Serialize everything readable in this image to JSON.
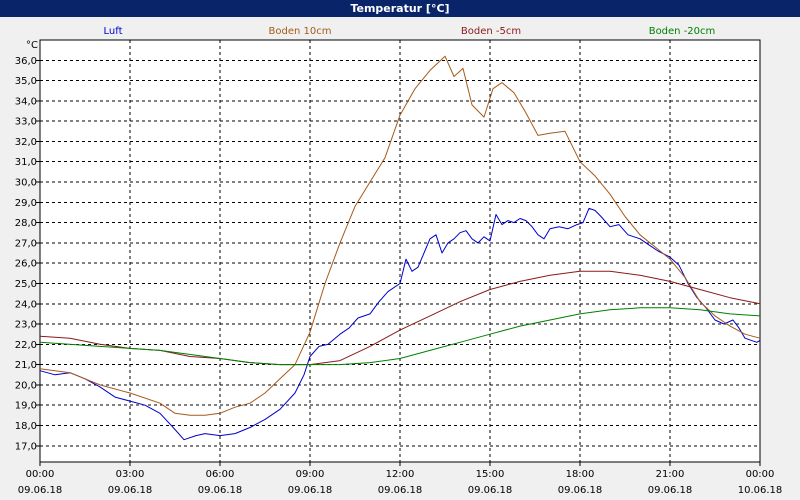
{
  "window": {
    "title": "Temperatur [°C]"
  },
  "chart_data": {
    "type": "line",
    "title": "Temperatur [°C]",
    "ylabel": "°C",
    "xlabel": "",
    "ylim": [
      16.2,
      37.0
    ],
    "xlim": [
      0,
      24
    ],
    "grid": true,
    "legend_position": "top",
    "y_ticks": [
      {
        "value": 17,
        "label": "17,0"
      },
      {
        "value": 18,
        "label": "18,0"
      },
      {
        "value": 19,
        "label": "19,0"
      },
      {
        "value": 20,
        "label": "20,0"
      },
      {
        "value": 21,
        "label": "21,0"
      },
      {
        "value": 22,
        "label": "22,0"
      },
      {
        "value": 23,
        "label": "23,0"
      },
      {
        "value": 24,
        "label": "24,0"
      },
      {
        "value": 25,
        "label": "25,0"
      },
      {
        "value": 26,
        "label": "26,0"
      },
      {
        "value": 27,
        "label": "27,0"
      },
      {
        "value": 28,
        "label": "28,0"
      },
      {
        "value": 29,
        "label": "29,0"
      },
      {
        "value": 30,
        "label": "30,0"
      },
      {
        "value": 31,
        "label": "31,0"
      },
      {
        "value": 32,
        "label": "32,0"
      },
      {
        "value": 33,
        "label": "33,0"
      },
      {
        "value": 34,
        "label": "34,0"
      },
      {
        "value": 35,
        "label": "35,0"
      },
      {
        "value": 36,
        "label": "36,0"
      }
    ],
    "x_ticks": [
      {
        "hour": 0,
        "time": "00:00",
        "date": "09.06.18"
      },
      {
        "hour": 3,
        "time": "03:00",
        "date": "09.06.18"
      },
      {
        "hour": 6,
        "time": "06:00",
        "date": "09.06.18"
      },
      {
        "hour": 9,
        "time": "09:00",
        "date": "09.06.18"
      },
      {
        "hour": 12,
        "time": "12:00",
        "date": "09.06.18"
      },
      {
        "hour": 15,
        "time": "15:00",
        "date": "09.06.18"
      },
      {
        "hour": 18,
        "time": "18:00",
        "date": "09.06.18"
      },
      {
        "hour": 21,
        "time": "21:00",
        "date": "09.06.18"
      },
      {
        "hour": 24,
        "time": "00:00",
        "date": "10.06.18"
      }
    ],
    "series": [
      {
        "name": "Luft",
        "color": "#0000cc",
        "points": [
          [
            0,
            20.7
          ],
          [
            0.5,
            20.5
          ],
          [
            1,
            20.6
          ],
          [
            1.5,
            20.3
          ],
          [
            2,
            19.9
          ],
          [
            2.5,
            19.4
          ],
          [
            3,
            19.2
          ],
          [
            3.5,
            19.0
          ],
          [
            4,
            18.6
          ],
          [
            4.5,
            17.8
          ],
          [
            4.8,
            17.3
          ],
          [
            5.2,
            17.5
          ],
          [
            5.5,
            17.6
          ],
          [
            6,
            17.5
          ],
          [
            6.5,
            17.6
          ],
          [
            7,
            17.9
          ],
          [
            7.5,
            18.3
          ],
          [
            8,
            18.8
          ],
          [
            8.5,
            19.6
          ],
          [
            8.8,
            20.5
          ],
          [
            9,
            21.4
          ],
          [
            9.3,
            21.9
          ],
          [
            9.6,
            22.0
          ],
          [
            10,
            22.5
          ],
          [
            10.3,
            22.8
          ],
          [
            10.6,
            23.3
          ],
          [
            11,
            23.5
          ],
          [
            11.3,
            24.1
          ],
          [
            11.6,
            24.6
          ],
          [
            12,
            25.0
          ],
          [
            12.2,
            26.2
          ],
          [
            12.4,
            25.6
          ],
          [
            12.6,
            25.8
          ],
          [
            12.8,
            26.5
          ],
          [
            13,
            27.2
          ],
          [
            13.2,
            27.4
          ],
          [
            13.4,
            26.5
          ],
          [
            13.6,
            27.0
          ],
          [
            13.8,
            27.2
          ],
          [
            14,
            27.5
          ],
          [
            14.2,
            27.6
          ],
          [
            14.4,
            27.2
          ],
          [
            14.6,
            27.0
          ],
          [
            14.8,
            27.3
          ],
          [
            15,
            27.1
          ],
          [
            15.2,
            28.4
          ],
          [
            15.4,
            27.9
          ],
          [
            15.6,
            28.1
          ],
          [
            15.8,
            28.0
          ],
          [
            16,
            28.2
          ],
          [
            16.2,
            28.1
          ],
          [
            16.4,
            27.8
          ],
          [
            16.6,
            27.4
          ],
          [
            16.8,
            27.2
          ],
          [
            17,
            27.7
          ],
          [
            17.3,
            27.8
          ],
          [
            17.6,
            27.7
          ],
          [
            17.9,
            27.9
          ],
          [
            18.1,
            28.0
          ],
          [
            18.3,
            28.7
          ],
          [
            18.5,
            28.6
          ],
          [
            18.7,
            28.3
          ],
          [
            19,
            27.8
          ],
          [
            19.3,
            27.9
          ],
          [
            19.6,
            27.4
          ],
          [
            20,
            27.2
          ],
          [
            20.3,
            26.9
          ],
          [
            20.6,
            26.6
          ],
          [
            21,
            26.3
          ],
          [
            21.3,
            25.9
          ],
          [
            21.6,
            25.0
          ],
          [
            21.9,
            24.3
          ],
          [
            22.2,
            23.8
          ],
          [
            22.5,
            23.2
          ],
          [
            22.8,
            23.0
          ],
          [
            23.1,
            23.2
          ],
          [
            23.3,
            22.8
          ],
          [
            23.5,
            22.3
          ],
          [
            23.7,
            22.2
          ],
          [
            23.9,
            22.1
          ],
          [
            24,
            22.2
          ]
        ]
      },
      {
        "name": "Boden 10cm",
        "color": "#a65a1a",
        "points": [
          [
            0,
            20.8
          ],
          [
            1,
            20.6
          ],
          [
            2,
            20.0
          ],
          [
            3,
            19.6
          ],
          [
            4,
            19.1
          ],
          [
            4.5,
            18.6
          ],
          [
            5,
            18.5
          ],
          [
            5.5,
            18.5
          ],
          [
            6,
            18.6
          ],
          [
            6.5,
            18.9
          ],
          [
            7,
            19.1
          ],
          [
            7.5,
            19.6
          ],
          [
            8,
            20.3
          ],
          [
            8.5,
            21.0
          ],
          [
            9,
            22.6
          ],
          [
            9.5,
            25.0
          ],
          [
            10,
            27.0
          ],
          [
            10.5,
            28.8
          ],
          [
            11,
            30.0
          ],
          [
            11.5,
            31.2
          ],
          [
            12,
            33.3
          ],
          [
            12.5,
            34.6
          ],
          [
            13,
            35.5
          ],
          [
            13.5,
            36.2
          ],
          [
            13.8,
            35.2
          ],
          [
            14.1,
            35.6
          ],
          [
            14.4,
            33.8
          ],
          [
            14.8,
            33.2
          ],
          [
            15.1,
            34.6
          ],
          [
            15.4,
            34.9
          ],
          [
            15.8,
            34.4
          ],
          [
            16.2,
            33.4
          ],
          [
            16.6,
            32.3
          ],
          [
            17,
            32.4
          ],
          [
            17.5,
            32.5
          ],
          [
            18,
            31.0
          ],
          [
            18.5,
            30.3
          ],
          [
            19,
            29.4
          ],
          [
            19.5,
            28.3
          ],
          [
            20,
            27.4
          ],
          [
            20.5,
            26.8
          ],
          [
            21,
            26.2
          ],
          [
            21.5,
            25.3
          ],
          [
            22,
            24.1
          ],
          [
            22.5,
            23.4
          ],
          [
            23,
            22.9
          ],
          [
            23.5,
            22.5
          ],
          [
            24,
            22.3
          ]
        ]
      },
      {
        "name": "Boden -5cm",
        "color": "#8b1a1a",
        "points": [
          [
            0,
            22.4
          ],
          [
            1,
            22.3
          ],
          [
            2,
            22.0
          ],
          [
            3,
            21.8
          ],
          [
            4,
            21.7
          ],
          [
            5,
            21.4
          ],
          [
            6,
            21.3
          ],
          [
            7,
            21.1
          ],
          [
            8,
            21.0
          ],
          [
            9,
            21.0
          ],
          [
            10,
            21.2
          ],
          [
            11,
            21.9
          ],
          [
            12,
            22.7
          ],
          [
            13,
            23.4
          ],
          [
            14,
            24.1
          ],
          [
            15,
            24.7
          ],
          [
            16,
            25.1
          ],
          [
            17,
            25.4
          ],
          [
            18,
            25.6
          ],
          [
            19,
            25.6
          ],
          [
            20,
            25.4
          ],
          [
            21,
            25.1
          ],
          [
            22,
            24.7
          ],
          [
            23,
            24.3
          ],
          [
            24,
            24.0
          ]
        ]
      },
      {
        "name": "Boden -20cm",
        "color": "#008000",
        "points": [
          [
            0,
            22.1
          ],
          [
            2,
            21.9
          ],
          [
            4,
            21.7
          ],
          [
            6,
            21.3
          ],
          [
            7,
            21.1
          ],
          [
            8,
            21.0
          ],
          [
            9,
            21.0
          ],
          [
            10,
            21.0
          ],
          [
            11,
            21.1
          ],
          [
            12,
            21.3
          ],
          [
            13,
            21.7
          ],
          [
            14,
            22.1
          ],
          [
            15,
            22.5
          ],
          [
            16,
            22.9
          ],
          [
            17,
            23.2
          ],
          [
            18,
            23.5
          ],
          [
            19,
            23.7
          ],
          [
            20,
            23.8
          ],
          [
            21,
            23.8
          ],
          [
            22,
            23.7
          ],
          [
            23,
            23.5
          ],
          [
            24,
            23.4
          ]
        ]
      }
    ]
  }
}
